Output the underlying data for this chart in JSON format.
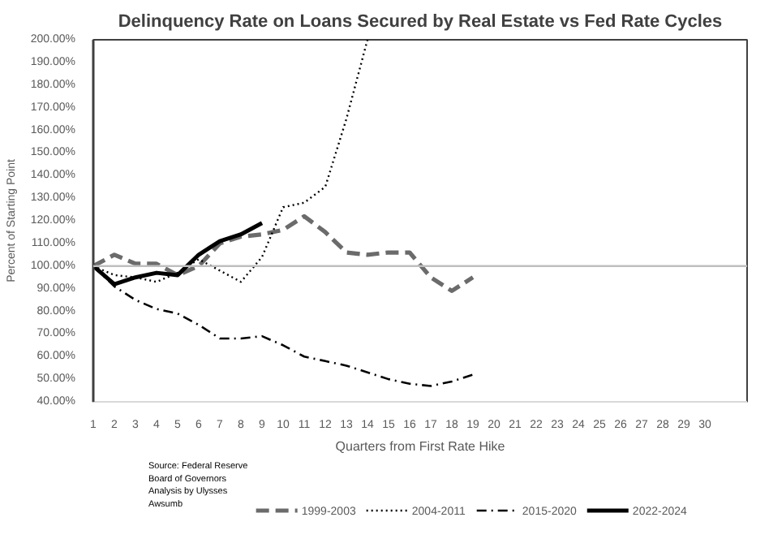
{
  "chart_data": {
    "type": "line",
    "title": "Delinquency Rate on Loans Secured by Real Estate vs Fed Rate Cycles",
    "xlabel": "Quarters from First Rate Hike",
    "ylabel": "Percent of Starting Point",
    "xlim": [
      1,
      32
    ],
    "xticks": [
      1,
      2,
      3,
      4,
      5,
      6,
      7,
      8,
      9,
      10,
      11,
      12,
      13,
      14,
      15,
      16,
      17,
      18,
      19,
      20,
      21,
      22,
      23,
      24,
      25,
      26,
      27,
      28,
      29,
      30
    ],
    "ylim": [
      40,
      200
    ],
    "yticks": [
      {
        "value": 40,
        "label": "40.00%"
      },
      {
        "value": 50,
        "label": "50.00%"
      },
      {
        "value": 60,
        "label": "60.00%"
      },
      {
        "value": 70,
        "label": "70.00%"
      },
      {
        "value": 80,
        "label": "80.00%"
      },
      {
        "value": 90,
        "label": "90.00%"
      },
      {
        "value": 100,
        "label": "100.00%"
      },
      {
        "value": 110,
        "label": "110.00%"
      },
      {
        "value": 120,
        "label": "120.00%"
      },
      {
        "value": 130,
        "label": "130.00%"
      },
      {
        "value": 140,
        "label": "140.00%"
      },
      {
        "value": 150,
        "label": "150.00%"
      },
      {
        "value": 160,
        "label": "160.00%"
      },
      {
        "value": 170,
        "label": "170.00%"
      },
      {
        "value": 180,
        "label": "180.00%"
      },
      {
        "value": 190,
        "label": "190.00%"
      },
      {
        "value": 200,
        "label": "200.00%"
      }
    ],
    "grid": false,
    "legend": "bottom",
    "marker": "none",
    "ref_lines": [
      {
        "axis": "y",
        "value": 100,
        "color": "#bfbfbf"
      }
    ],
    "annotations": [
      "Source: Federal Reserve\nBoard of Governors\nAnalysis by Ulysses\nAwsumb"
    ],
    "series": [
      {
        "name": "1999-2003",
        "color": "#6b6b6b",
        "line_style": "dashed",
        "x": [
          1,
          2,
          3,
          4,
          5,
          6,
          7,
          8,
          9,
          10,
          11,
          12,
          13,
          14,
          15,
          16,
          17,
          18,
          19
        ],
        "values": [
          100,
          105,
          101,
          101,
          96,
          100,
          110,
          113,
          114,
          116,
          122,
          115,
          106,
          105,
          106,
          106,
          95,
          89,
          95
        ]
      },
      {
        "name": "2004-2011",
        "color": "#000000",
        "line_style": "dotted",
        "x": [
          1,
          2,
          3,
          4,
          5,
          6,
          7,
          8,
          9,
          10,
          11,
          12,
          13,
          14
        ],
        "values": [
          100,
          96,
          95,
          93,
          97,
          103,
          98,
          93,
          104,
          126,
          128,
          135,
          165,
          200
        ]
      },
      {
        "name": "2015-2020",
        "color": "#000000",
        "line_style": "dashdot",
        "x": [
          1,
          2,
          3,
          4,
          5,
          6,
          7,
          8,
          9,
          10,
          11,
          12,
          13,
          14,
          15,
          16,
          17,
          18,
          19
        ],
        "values": [
          100,
          91,
          85,
          81,
          79,
          74,
          68,
          68,
          69,
          65,
          60,
          58,
          56,
          53,
          50,
          48,
          47,
          49,
          52
        ]
      },
      {
        "name": "2022-2024",
        "color": "#000000",
        "line_style": "solid",
        "x": [
          1,
          2,
          3,
          4,
          5,
          6,
          7,
          8,
          9
        ],
        "values": [
          100,
          92,
          95,
          97,
          96,
          105,
          111,
          114,
          119
        ]
      }
    ]
  }
}
